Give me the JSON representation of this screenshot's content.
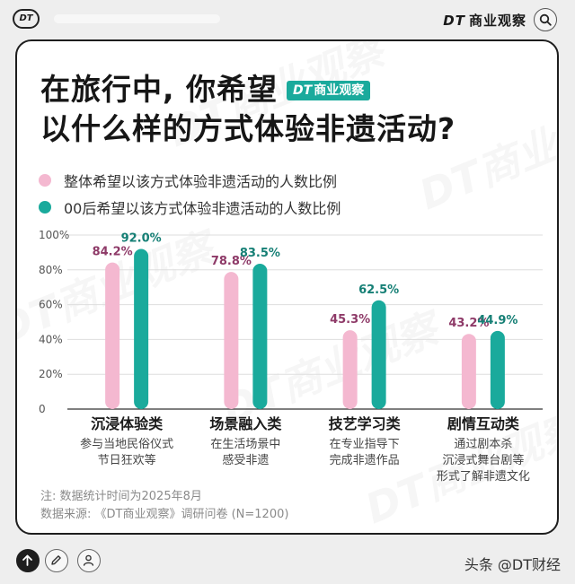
{
  "header": {
    "logo_text": "DT",
    "brand_mark": "DT",
    "brand_name": "商业观察",
    "search_icon": "search-icon"
  },
  "title": {
    "line1": "在旅行中, 你希望",
    "badge_mark": "DT",
    "badge_text": "商业观察",
    "line2": "以什么样的方式体验非遗活动?"
  },
  "legend": [
    {
      "label": "整体希望以该方式体验非遗活动的人数比例",
      "color": "#f4b8d0"
    },
    {
      "label": "00后希望以该方式体验非遗活动的人数比例",
      "color": "#1aaa9c"
    }
  ],
  "chart_data": {
    "type": "bar",
    "categories": [
      "沉浸体验类",
      "场景融入类",
      "技艺学习类",
      "剧情互动类"
    ],
    "category_descriptions": [
      [
        "参与当地民俗仪式",
        "节日狂欢等"
      ],
      [
        "在生活场景中",
        "感受非遗"
      ],
      [
        "在专业指导下",
        "完成非遗作品"
      ],
      [
        "通过剧本杀",
        "沉浸式舞台剧等",
        "形式了解非遗文化"
      ]
    ],
    "series": [
      {
        "values": [
          84.2,
          78.8,
          45.3,
          43.2
        ],
        "labels": [
          "84.2%",
          "78.8%",
          "45.3%",
          "43.2%"
        ],
        "color": "#f4b8d0",
        "label_color": "#8e3a68"
      },
      {
        "values": [
          92.0,
          83.5,
          62.5,
          44.9
        ],
        "labels": [
          "92.0%",
          "83.5%",
          "62.5%",
          "44.9%"
        ],
        "color": "#1aaa9c",
        "label_color": "#157f75"
      }
    ],
    "yticks": [
      "0",
      "20%",
      "40%",
      "60%",
      "80%",
      "100%"
    ],
    "ylim": [
      0,
      100
    ],
    "grid": true
  },
  "notes": {
    "note": "注: 数据统计时间为2025年8月",
    "source": "数据来源: 《DT商业观察》调研问卷 (N=1200)"
  },
  "footer": {
    "byline": "头条 @DT财经"
  }
}
